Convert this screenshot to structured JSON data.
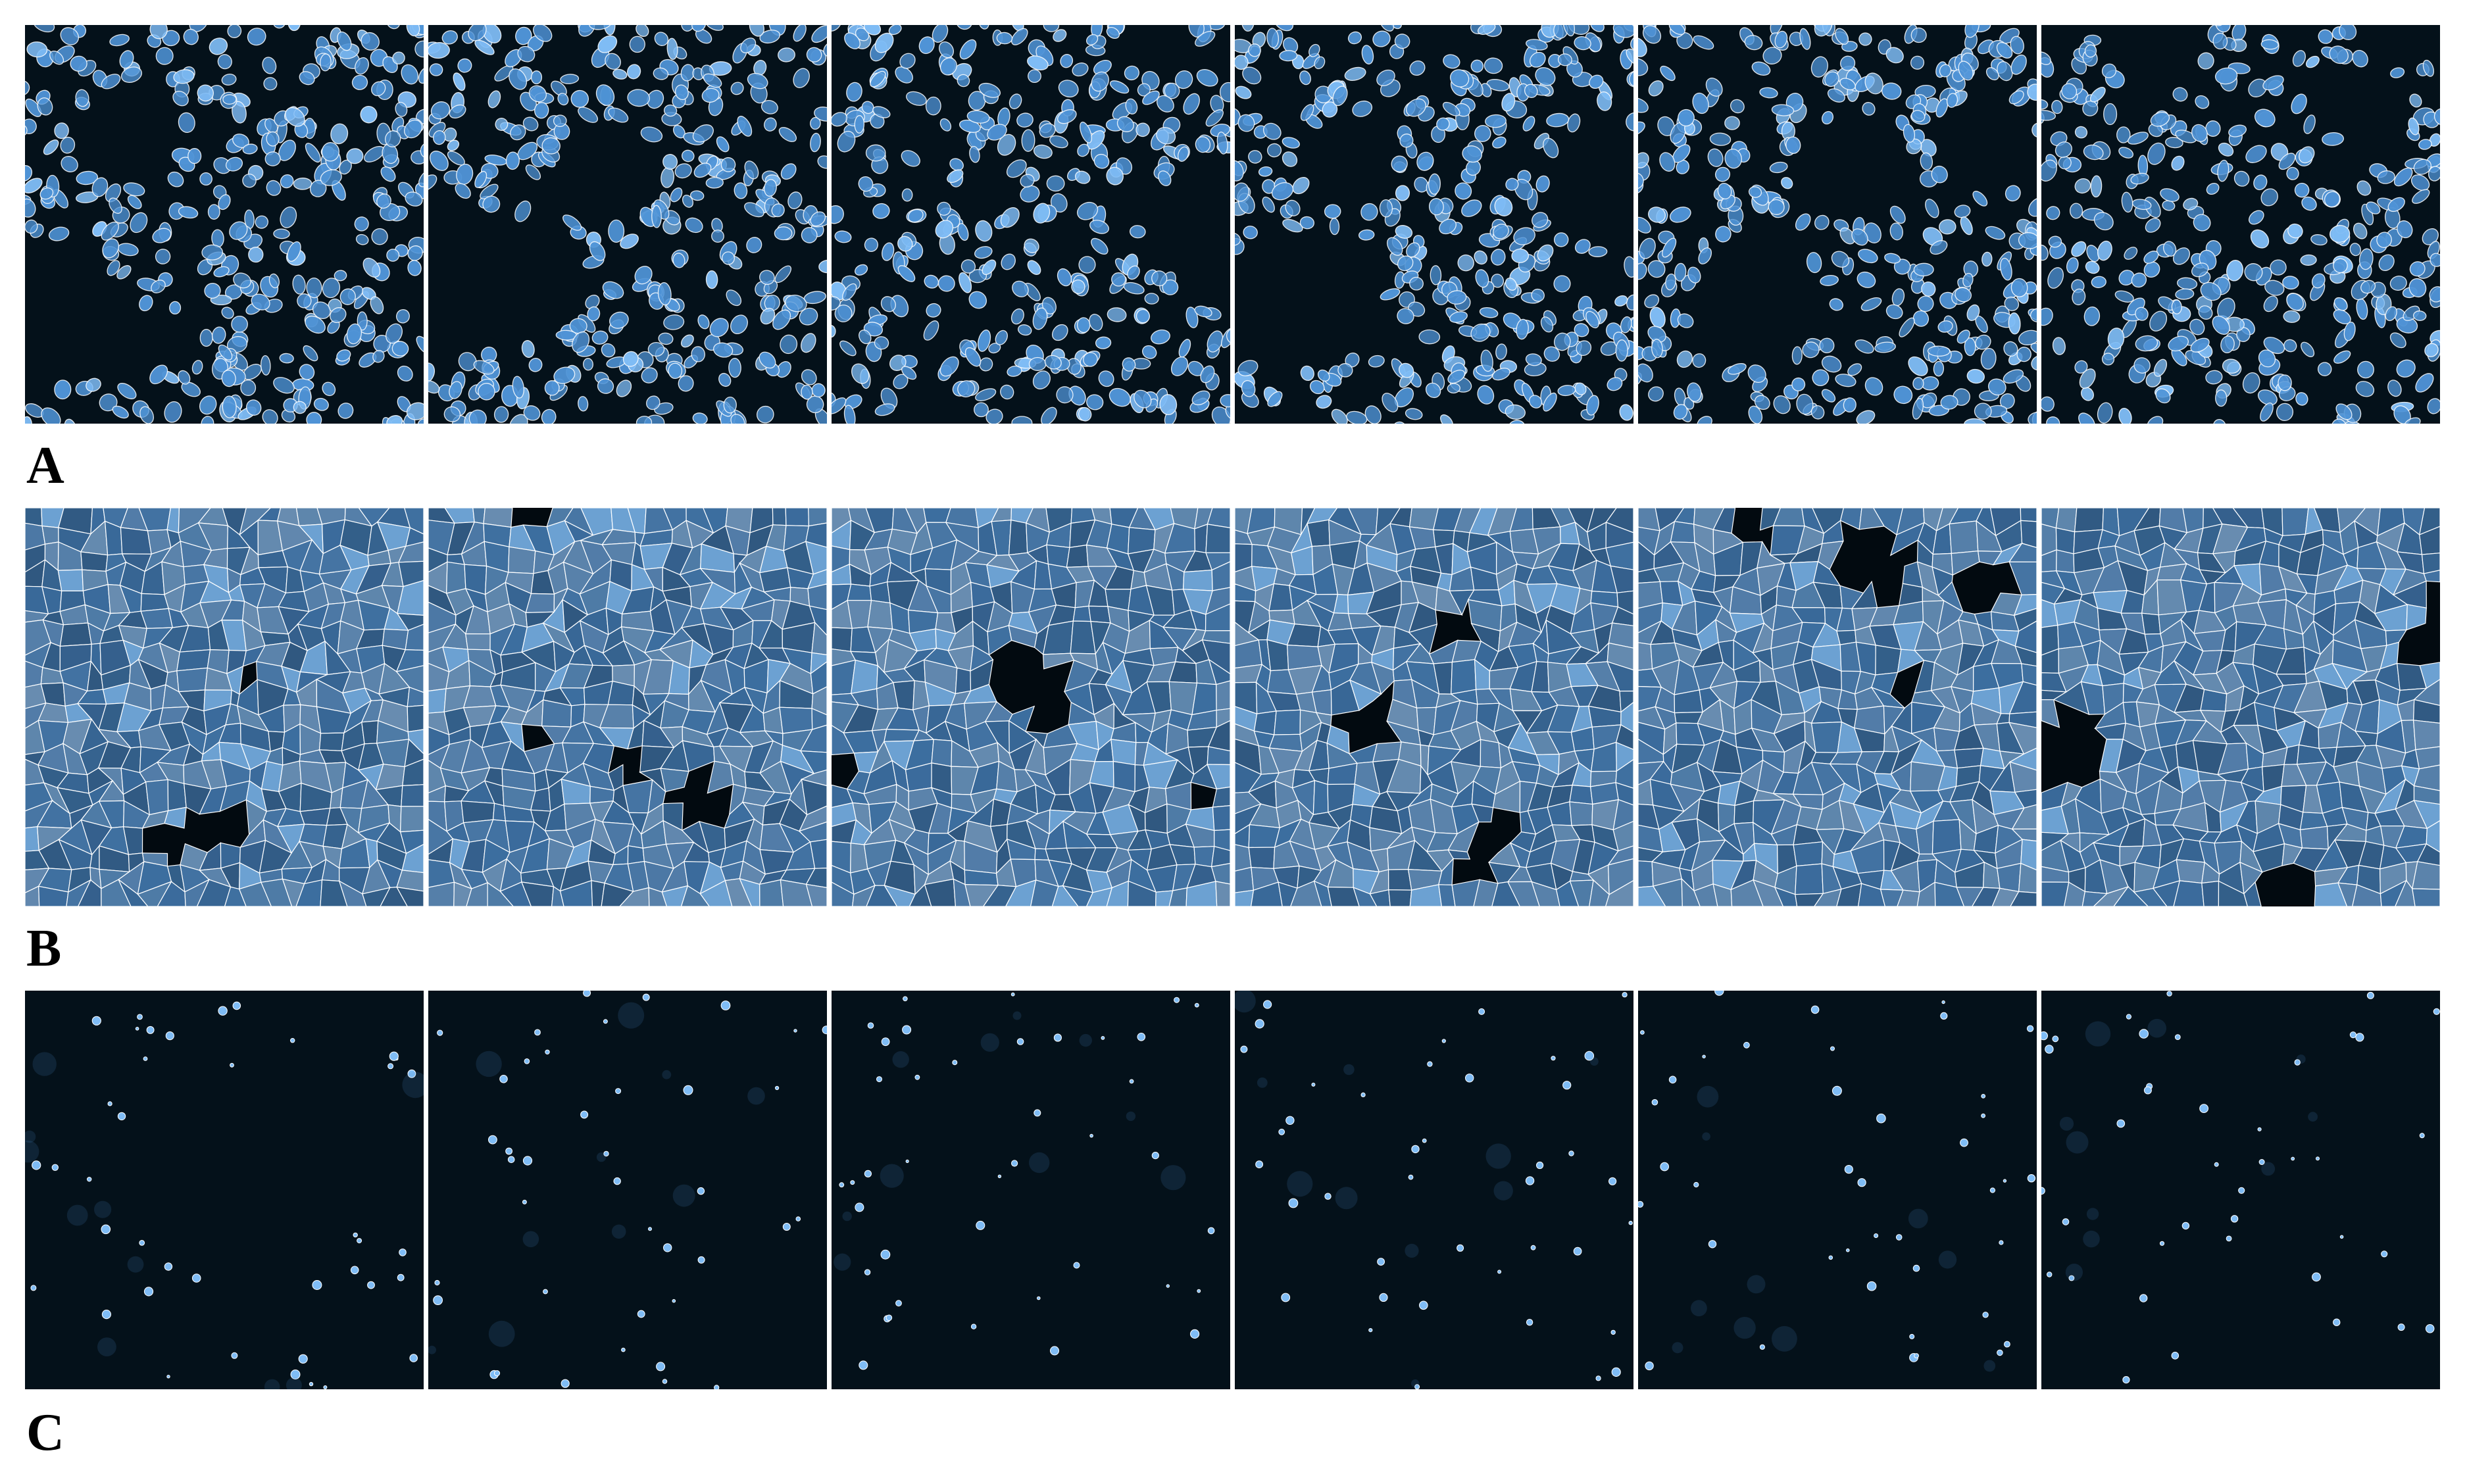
{
  "figure": {
    "panels": [
      {
        "id": "A",
        "label": "A",
        "kind": "nuclei",
        "tile_count": 6
      },
      {
        "id": "B",
        "label": "B",
        "kind": "cells",
        "tile_count": 6
      },
      {
        "id": "C",
        "label": "C",
        "kind": "sparse",
        "tile_count": 6
      }
    ]
  },
  "colors": {
    "background": "#04111a",
    "nucleus_fill": "#4f93d6",
    "nucleus_bright": "#7fbcf5",
    "cell_fill": "#2f5f8c",
    "cell_gap": "#020a10",
    "outline": "#ffffff"
  }
}
